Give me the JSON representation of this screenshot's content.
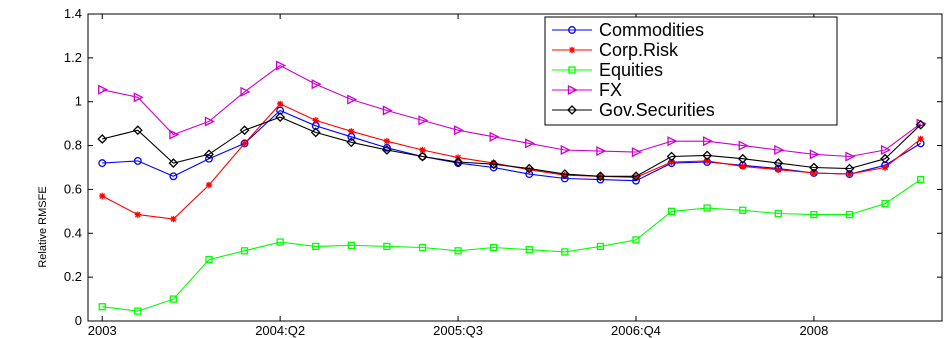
{
  "chart_data": {
    "type": "line",
    "title": "",
    "xlabel": "",
    "ylabel": "Relative RMSFE",
    "x_tick_labels": [
      "2003",
      "2004:Q2",
      "2005:Q3",
      "2006:Q4",
      "2008"
    ],
    "x_tick_positions": [
      1,
      6,
      11,
      16,
      21
    ],
    "ylim": [
      0,
      1.4
    ],
    "yticks": [
      0,
      0.2,
      0.4,
      0.6,
      0.8,
      1,
      1.2,
      1.4
    ],
    "xlim": [
      0.6,
      24.6
    ],
    "grid": false,
    "legend_position": "top-right",
    "x": [
      1,
      2,
      3,
      4,
      5,
      6,
      7,
      8,
      9,
      10,
      11,
      12,
      13,
      14,
      15,
      16,
      17,
      18,
      19,
      20,
      21,
      22,
      23,
      24
    ],
    "series": [
      {
        "name": "Commodities",
        "color": "#0000ff",
        "marker": "circle",
        "values": [
          0.72,
          0.73,
          0.66,
          0.74,
          0.81,
          0.96,
          0.89,
          0.84,
          0.79,
          0.75,
          0.72,
          0.7,
          0.67,
          0.65,
          0.645,
          0.64,
          0.72,
          0.725,
          0.71,
          0.695,
          0.675,
          0.67,
          0.71,
          0.81
        ]
      },
      {
        "name": "Corp.Risk",
        "color": "#ff0000",
        "marker": "star",
        "values": [
          0.57,
          0.485,
          0.465,
          0.62,
          0.81,
          0.99,
          0.915,
          0.865,
          0.82,
          0.78,
          0.745,
          0.72,
          0.69,
          0.665,
          0.66,
          0.655,
          0.725,
          0.73,
          0.705,
          0.69,
          0.675,
          0.67,
          0.7,
          0.83
        ]
      },
      {
        "name": "Equities",
        "color": "#00ff00",
        "marker": "square",
        "values": [
          0.065,
          0.045,
          0.1,
          0.28,
          0.32,
          0.36,
          0.34,
          0.345,
          0.34,
          0.335,
          0.32,
          0.335,
          0.325,
          0.315,
          0.34,
          0.37,
          0.5,
          0.515,
          0.505,
          0.49,
          0.485,
          0.485,
          0.535,
          0.645
        ]
      },
      {
        "name": "FX",
        "color": "#cc00cc",
        "marker": "triangle-right",
        "values": [
          1.055,
          1.02,
          0.85,
          0.91,
          1.045,
          1.165,
          1.08,
          1.01,
          0.96,
          0.915,
          0.87,
          0.84,
          0.81,
          0.78,
          0.775,
          0.77,
          0.82,
          0.82,
          0.8,
          0.78,
          0.76,
          0.75,
          0.78,
          0.9
        ]
      },
      {
        "name": "Gov.Securities",
        "color": "#000000",
        "marker": "diamond",
        "values": [
          0.83,
          0.87,
          0.72,
          0.76,
          0.87,
          0.93,
          0.86,
          0.815,
          0.78,
          0.75,
          0.725,
          0.715,
          0.695,
          0.67,
          0.66,
          0.66,
          0.75,
          0.755,
          0.74,
          0.72,
          0.7,
          0.695,
          0.74,
          0.895
        ]
      }
    ]
  }
}
